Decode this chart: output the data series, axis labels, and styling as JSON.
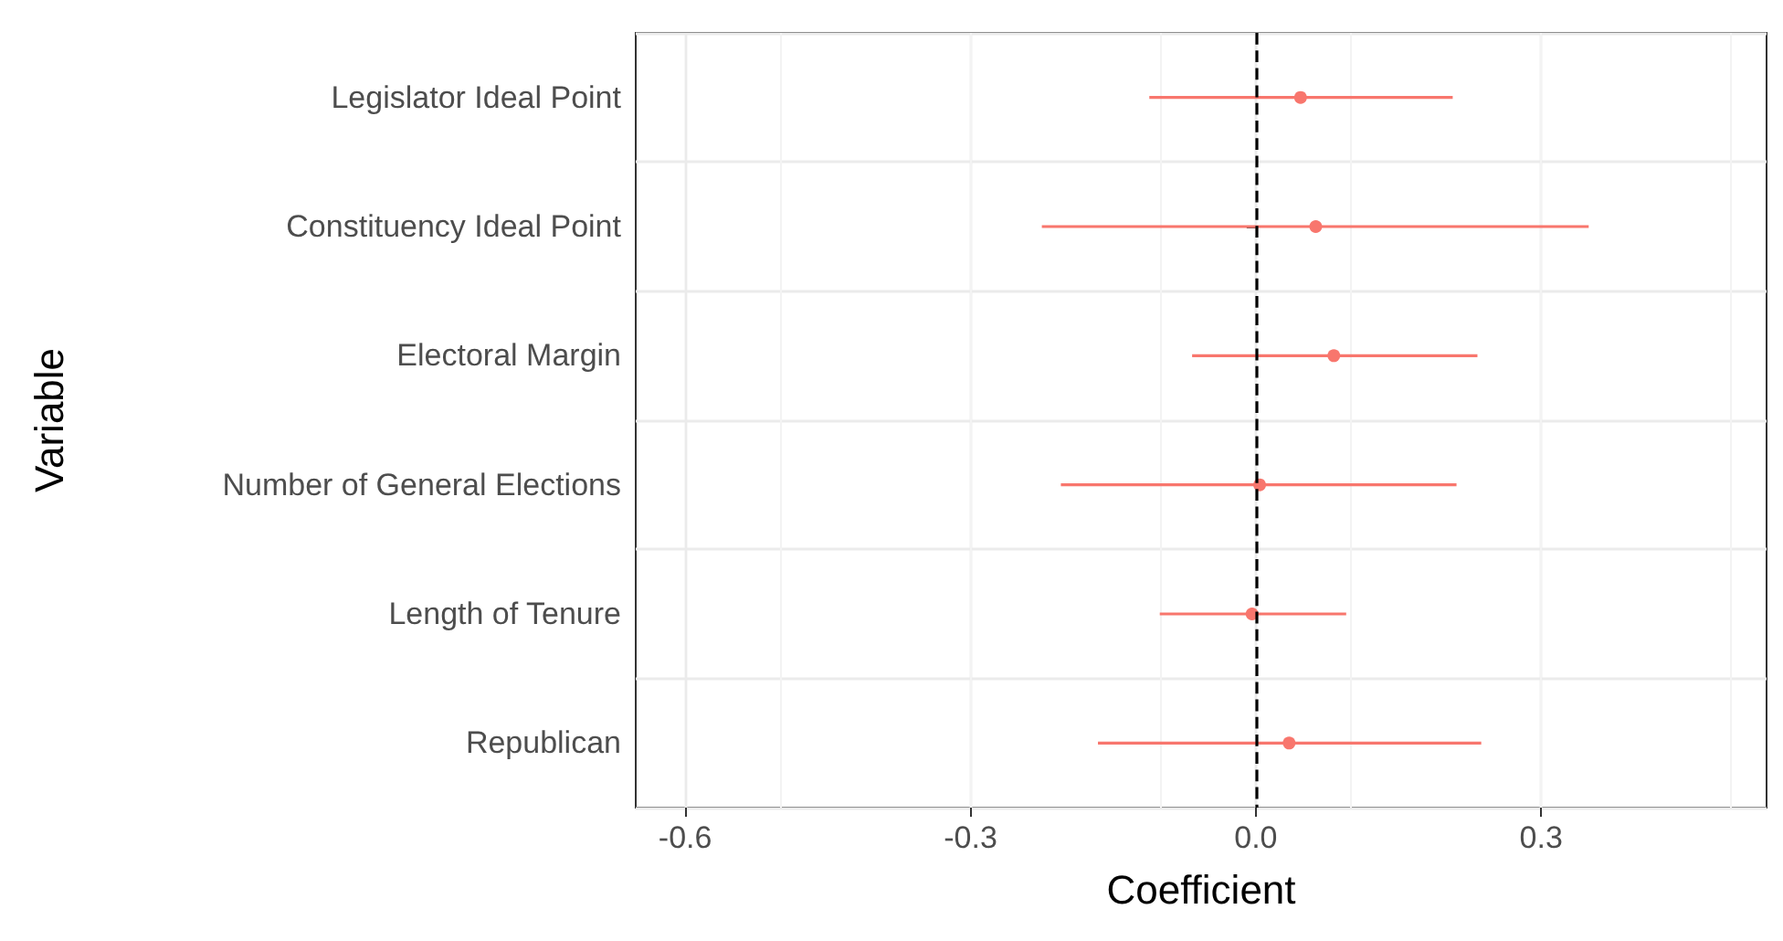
{
  "chart_data": {
    "type": "scatter",
    "orientation": "horizontal",
    "xlabel": "Coefficient",
    "ylabel": "Variable",
    "categories": [
      "Legislator Ideal Point",
      "Constituency Ideal Point",
      "Electoral Margin",
      "Number of General Elections",
      "Length of Tenure",
      "Republican"
    ],
    "series": [
      {
        "color": "#f8766d",
        "values": [
          0.047,
          0.063,
          0.082,
          0.004,
          -0.004,
          0.035
        ],
        "errors": [
          [
            -0.112,
            0.207
          ],
          [
            -0.225,
            0.35
          ],
          [
            -0.067,
            0.233
          ],
          [
            -0.205,
            0.211
          ],
          [
            -0.101,
            0.095
          ],
          [
            -0.166,
            0.237
          ]
        ]
      }
    ],
    "xlim": [
      -0.652,
      0.537
    ],
    "xticks": [
      -0.6,
      -0.3,
      {
        "value": 0,
        "label": "0.0"
      },
      0.3
    ],
    "ref_lines": [
      {
        "axis": "x",
        "value": 0,
        "color": "#000000",
        "line_style": "dashed"
      }
    ],
    "grid": true,
    "marker": "circle"
  }
}
